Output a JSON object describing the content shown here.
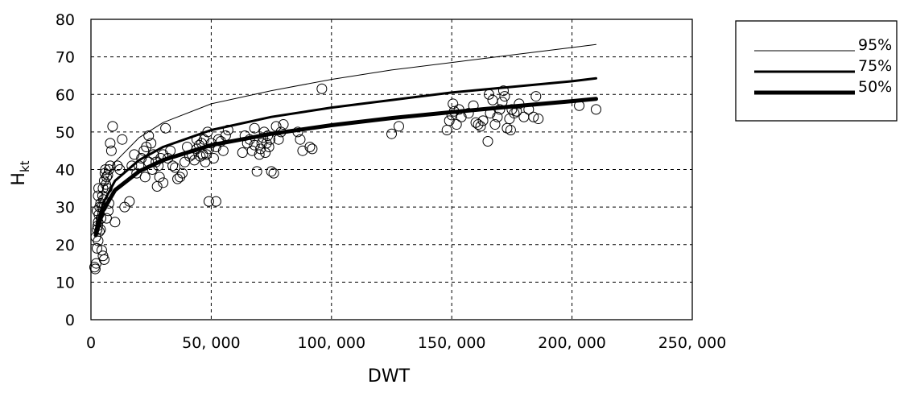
{
  "chart_data": {
    "type": "scatter",
    "xlabel": "DWT",
    "ylabel_main": "H",
    "ylabel_sub": "kt",
    "xlim": [
      0,
      250000
    ],
    "ylim": [
      0,
      80
    ],
    "x_ticks": [
      0,
      50000,
      100000,
      150000,
      200000,
      250000
    ],
    "x_tick_labels": [
      "0",
      "50, 000",
      "100, 000",
      "150, 000",
      "200, 000",
      "250, 000"
    ],
    "y_ticks": [
      0,
      10,
      20,
      30,
      40,
      50,
      60,
      70,
      80
    ],
    "y_tick_labels": [
      "0",
      "10",
      "20",
      "30",
      "40",
      "50",
      "60",
      "70",
      "80"
    ],
    "grid": true,
    "legend_position": "right",
    "legend": [
      {
        "label": "95%",
        "weight": "thin"
      },
      {
        "label": "75%",
        "weight": "medium"
      },
      {
        "label": "50%",
        "weight": "thick"
      }
    ],
    "curves": [
      {
        "name": "95%",
        "x": [
          2000,
          5000,
          10000,
          20000,
          30000,
          50000,
          75000,
          100000,
          125000,
          150000,
          175000,
          200000,
          210000
        ],
        "y": [
          25.5,
          35.0,
          42.0,
          48.5,
          52.5,
          57.5,
          61.0,
          64.0,
          66.5,
          68.5,
          70.5,
          72.5,
          73.3
        ]
      },
      {
        "name": "75%",
        "x": [
          2000,
          5000,
          10000,
          20000,
          30000,
          50000,
          75000,
          100000,
          125000,
          150000,
          175000,
          200000,
          210000
        ],
        "y": [
          24.0,
          31.0,
          37.0,
          42.5,
          46.0,
          50.5,
          54.0,
          56.5,
          58.5,
          60.5,
          62.0,
          63.5,
          64.3
        ]
      },
      {
        "name": "50%",
        "x": [
          2000,
          5000,
          10000,
          20000,
          30000,
          50000,
          75000,
          100000,
          125000,
          150000,
          175000,
          200000,
          210000
        ],
        "y": [
          22.5,
          29.0,
          34.5,
          39.5,
          42.5,
          46.5,
          49.5,
          51.8,
          53.7,
          55.3,
          56.8,
          58.2,
          58.8
        ]
      }
    ],
    "points": [
      [
        1500,
        14
      ],
      [
        1800,
        13.5
      ],
      [
        2200,
        15
      ],
      [
        2500,
        19
      ],
      [
        2000,
        22
      ],
      [
        2600,
        24
      ],
      [
        3000,
        26
      ],
      [
        3300,
        28
      ],
      [
        3600,
        30
      ],
      [
        3000,
        21
      ],
      [
        2800,
        25
      ],
      [
        3500,
        23.5
      ],
      [
        4000,
        24
      ],
      [
        4200,
        27
      ],
      [
        4500,
        30
      ],
      [
        4800,
        33
      ],
      [
        5000,
        35
      ],
      [
        5200,
        32
      ],
      [
        5500,
        37
      ],
      [
        5800,
        39
      ],
      [
        6000,
        40
      ],
      [
        6200,
        36
      ],
      [
        6500,
        38
      ],
      [
        7000,
        38.5
      ],
      [
        7500,
        40
      ],
      [
        8000,
        41
      ],
      [
        8500,
        45
      ],
      [
        9000,
        51.5
      ],
      [
        8000,
        47
      ],
      [
        7200,
        29
      ],
      [
        5000,
        17
      ],
      [
        5500,
        16
      ],
      [
        4500,
        18.5
      ],
      [
        6500,
        27
      ],
      [
        4000,
        31
      ],
      [
        3000,
        33
      ],
      [
        3200,
        35
      ],
      [
        2500,
        29
      ],
      [
        6800,
        35
      ],
      [
        7500,
        31
      ],
      [
        10000,
        26
      ],
      [
        11000,
        41
      ],
      [
        12000,
        40
      ],
      [
        13000,
        48
      ],
      [
        14000,
        30
      ],
      [
        16000,
        31.5
      ],
      [
        17000,
        41
      ],
      [
        18000,
        44
      ],
      [
        19000,
        39
      ],
      [
        20000,
        41
      ],
      [
        21000,
        43
      ],
      [
        22000,
        45
      ],
      [
        23000,
        46
      ],
      [
        24000,
        49
      ],
      [
        25000,
        47
      ],
      [
        26000,
        44
      ],
      [
        27000,
        42
      ],
      [
        28000,
        41
      ],
      [
        29000,
        43
      ],
      [
        30000,
        44
      ],
      [
        22500,
        38
      ],
      [
        24000,
        42
      ],
      [
        25500,
        40
      ],
      [
        27500,
        35.5
      ],
      [
        28500,
        38
      ],
      [
        30000,
        36.5
      ],
      [
        31000,
        51
      ],
      [
        32000,
        43
      ],
      [
        33000,
        45
      ],
      [
        35000,
        40.5
      ],
      [
        36000,
        37.5
      ],
      [
        37000,
        38
      ],
      [
        38000,
        39
      ],
      [
        40000,
        46
      ],
      [
        42000,
        44
      ],
      [
        43000,
        42.5
      ],
      [
        44000,
        45.5
      ],
      [
        45000,
        46.5
      ],
      [
        46000,
        47
      ],
      [
        47000,
        48
      ],
      [
        48000,
        44
      ],
      [
        49000,
        45.5
      ],
      [
        50000,
        47
      ],
      [
        51000,
        43
      ],
      [
        52000,
        46
      ],
      [
        53000,
        48
      ],
      [
        54000,
        47.5
      ],
      [
        55000,
        45
      ],
      [
        56000,
        49
      ],
      [
        57000,
        50.5
      ],
      [
        44000,
        48
      ],
      [
        46500,
        44
      ],
      [
        48500,
        50
      ],
      [
        49000,
        31.5
      ],
      [
        52000,
        31.5
      ],
      [
        34000,
        41
      ],
      [
        39000,
        42
      ],
      [
        41000,
        43.5
      ],
      [
        45500,
        43.5
      ],
      [
        47500,
        42
      ],
      [
        63000,
        44.5
      ],
      [
        64000,
        49
      ],
      [
        65000,
        47
      ],
      [
        66000,
        48
      ],
      [
        67000,
        45
      ],
      [
        68000,
        46.5
      ],
      [
        69000,
        39.5
      ],
      [
        70000,
        44
      ],
      [
        70500,
        45.5
      ],
      [
        71000,
        47
      ],
      [
        71500,
        48.5
      ],
      [
        72000,
        50
      ],
      [
        72500,
        44.5
      ],
      [
        73000,
        47
      ],
      [
        73500,
        49
      ],
      [
        74000,
        46
      ],
      [
        74500,
        48
      ],
      [
        75000,
        39.5
      ],
      [
        76000,
        39
      ],
      [
        77000,
        51.5
      ],
      [
        78000,
        48
      ],
      [
        79000,
        50
      ],
      [
        80000,
        52
      ],
      [
        86000,
        50
      ],
      [
        87000,
        48
      ],
      [
        88000,
        45
      ],
      [
        91000,
        46
      ],
      [
        92000,
        45.5
      ],
      [
        96000,
        61.5
      ],
      [
        68000,
        51
      ],
      [
        125000,
        49.5
      ],
      [
        128000,
        51.5
      ],
      [
        148000,
        50.5
      ],
      [
        149000,
        53
      ],
      [
        150000,
        54.5
      ],
      [
        151000,
        55.5
      ],
      [
        152000,
        52
      ],
      [
        153000,
        56
      ],
      [
        154000,
        54
      ],
      [
        150500,
        57.5
      ],
      [
        157000,
        55
      ],
      [
        159000,
        57
      ],
      [
        160000,
        52.5
      ],
      [
        161000,
        52
      ],
      [
        162000,
        51.5
      ],
      [
        163000,
        53
      ],
      [
        165000,
        47.5
      ],
      [
        166000,
        55
      ],
      [
        167000,
        58.5
      ],
      [
        168000,
        52
      ],
      [
        169000,
        54
      ],
      [
        170000,
        56
      ],
      [
        171000,
        58
      ],
      [
        172000,
        59.5
      ],
      [
        173000,
        51
      ],
      [
        174000,
        53.5
      ],
      [
        175000,
        56
      ],
      [
        176000,
        55
      ],
      [
        177000,
        55.5
      ],
      [
        165500,
        60
      ],
      [
        178000,
        57.5
      ],
      [
        180000,
        54
      ],
      [
        182000,
        56
      ],
      [
        184000,
        54
      ],
      [
        185000,
        59.5
      ],
      [
        186000,
        53.5
      ],
      [
        203000,
        57
      ],
      [
        210000,
        56
      ],
      [
        171500,
        61
      ],
      [
        174500,
        50.5
      ]
    ]
  }
}
